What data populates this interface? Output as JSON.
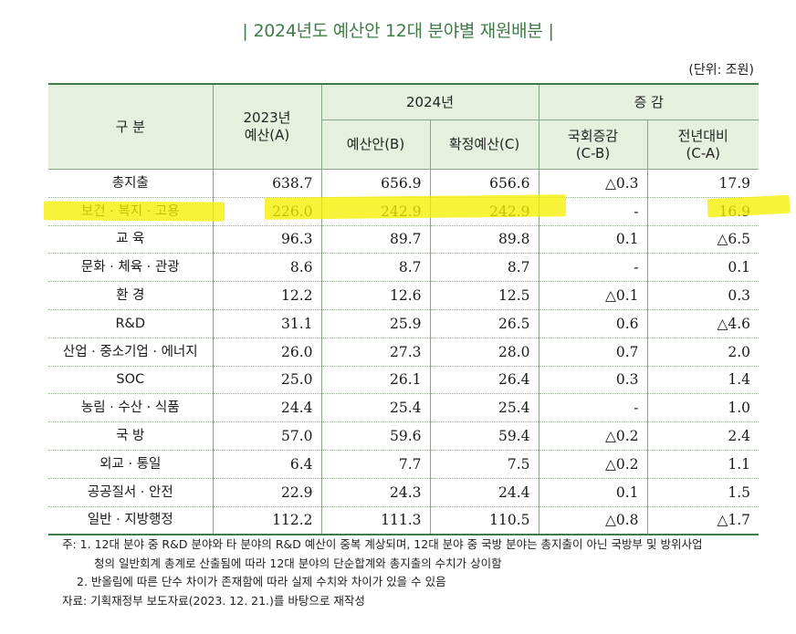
{
  "title": "2024년도 예산안 12대 분야별 재원배분",
  "title_bar": "|",
  "unit": "(단위: 조원)",
  "header": {
    "category": "구 분",
    "y2023_line1": "2023년",
    "y2023_line2": "예산(A)",
    "y2024": "2024년",
    "proposal": "예산안(B)",
    "final": "확정예산(C)",
    "change": "증 감",
    "assembly_line1": "국회증감",
    "assembly_line2": "(C-B)",
    "yoy_line1": "전년대비",
    "yoy_line2": "(C-A)"
  },
  "rows": [
    {
      "name": "총지출",
      "a": "638.7",
      "b": "656.9",
      "c": "656.6",
      "cb": "△0.3",
      "ca": "17.9"
    },
    {
      "name": "보건 · 복지 · 고용",
      "a": "226.0",
      "b": "242.9",
      "c": "242.9",
      "cb": "-",
      "ca": "16.9"
    },
    {
      "name": "교 육",
      "a": "96.3",
      "b": "89.7",
      "c": "89.8",
      "cb": "0.1",
      "ca": "△6.5"
    },
    {
      "name": "문화 · 체육 · 관광",
      "a": "8.6",
      "b": "8.7",
      "c": "8.7",
      "cb": "-",
      "ca": "0.1"
    },
    {
      "name": "환 경",
      "a": "12.2",
      "b": "12.6",
      "c": "12.5",
      "cb": "△0.1",
      "ca": "0.3"
    },
    {
      "name": "R&D",
      "a": "31.1",
      "b": "25.9",
      "c": "26.5",
      "cb": "0.6",
      "ca": "△4.6"
    },
    {
      "name": "산업 · 중소기업 · 에너지",
      "a": "26.0",
      "b": "27.3",
      "c": "28.0",
      "cb": "0.7",
      "ca": "2.0"
    },
    {
      "name": "SOC",
      "a": "25.0",
      "b": "26.1",
      "c": "26.4",
      "cb": "0.3",
      "ca": "1.4"
    },
    {
      "name": "농림 · 수산 · 식품",
      "a": "24.4",
      "b": "25.4",
      "c": "25.4",
      "cb": "-",
      "ca": "1.0"
    },
    {
      "name": "국 방",
      "a": "57.0",
      "b": "59.6",
      "c": "59.4",
      "cb": "△0.2",
      "ca": "2.4"
    },
    {
      "name": "외교 · 통일",
      "a": "6.4",
      "b": "7.7",
      "c": "7.5",
      "cb": "△0.2",
      "ca": "1.1"
    },
    {
      "name": "공공질서 · 안전",
      "a": "22.9",
      "b": "24.3",
      "c": "24.4",
      "cb": "0.1",
      "ca": "1.5"
    },
    {
      "name": "일반 · 지방행정",
      "a": "112.2",
      "b": "111.3",
      "c": "110.5",
      "cb": "△0.8",
      "ca": "△1.7"
    }
  ],
  "notes": {
    "note1": "주: 1. 12대 분야 중 R&D 분야와 타 분야의 R&D 예산이 중복 계상되며, 12대 분야 중 국방 분야는 총지출이 아닌 국방부 및 방위사업",
    "note1_cont": "청의 일반회계 총계로 산출됨에 따라 12대 분야의 단순합계와 총지출의 수치가 상이함",
    "note2": "2. 반올림에 따른 단수 차이가 존재함에 따라 실제 수치와 차이가 있을 수 있음",
    "source": "자료: 기획재정부 보도자료(2023. 12. 21.)를 바탕으로 재작성"
  },
  "colors": {
    "accent_green": "#3f7a48",
    "header_bg": "#e6f0df",
    "highlight": "#f5ef00"
  }
}
